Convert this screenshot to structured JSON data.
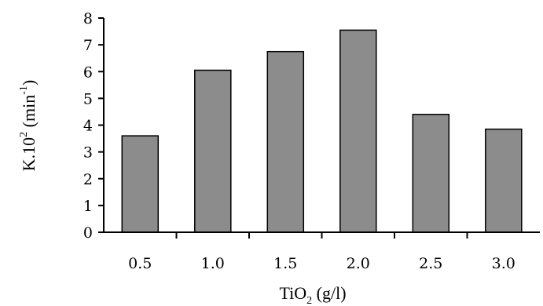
{
  "chart_data": {
    "type": "bar",
    "categories": [
      "0.5",
      "1.0",
      "1.5",
      "2.0",
      "2.5",
      "3.0"
    ],
    "values": [
      3.6,
      6.05,
      6.75,
      7.55,
      4.4,
      3.85
    ],
    "xlabel": {
      "main": "TiO",
      "sub": "2",
      "rest": " (g/l)"
    },
    "ylabel": {
      "main": "K.10",
      "sup1": "2",
      "mid": " (min",
      "sup2": "-1",
      "end": ")"
    },
    "ylim": [
      0,
      8
    ],
    "yticks": [
      "0",
      "1",
      "2",
      "3",
      "4",
      "5",
      "6",
      "7",
      "8"
    ],
    "grid": false,
    "bar_color": "#8c8c8c",
    "bar_edge_color": "#000000"
  }
}
